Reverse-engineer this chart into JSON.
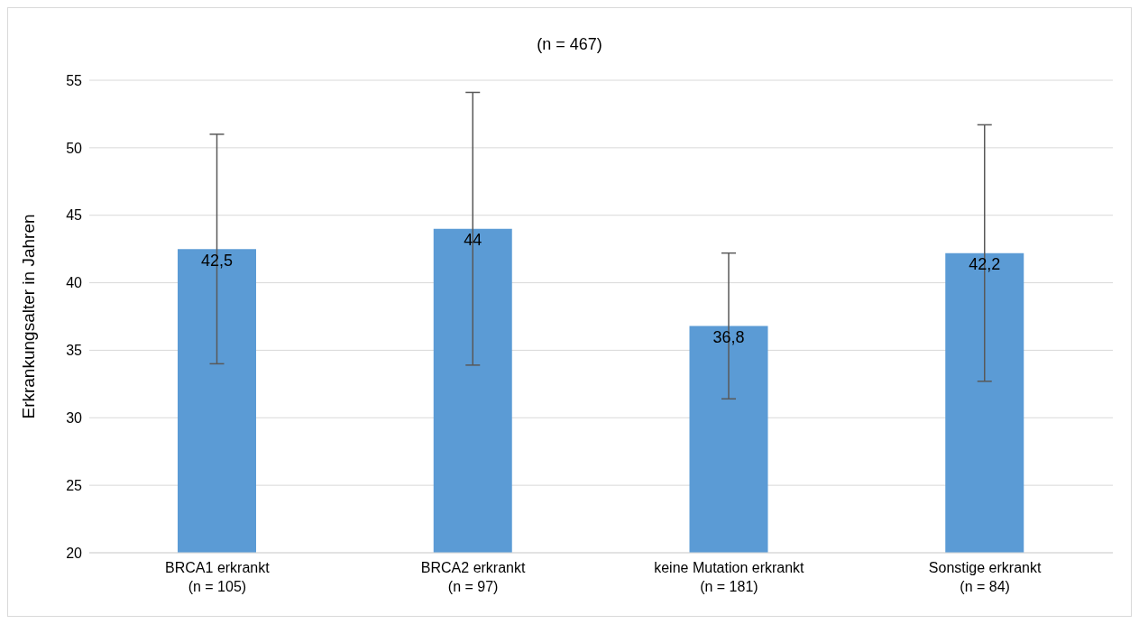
{
  "chart_data": {
    "type": "bar",
    "title": "(n = 467)",
    "ylabel": "Erkrankungsalter in Jahren",
    "categories": [
      "BRCA1 erkrankt\n(n = 105)",
      "BRCA2 erkrankt\n(n = 97)",
      "keine Mutation erkrankt\n(n = 181)",
      "Sonstige erkrankt\n(n = 84)"
    ],
    "values": [
      42.5,
      44,
      36.8,
      42.2
    ],
    "value_labels": [
      "42,5",
      "44",
      "36,8",
      "42,2"
    ],
    "errors": [
      8.5,
      10.1,
      5.4,
      9.5
    ],
    "color": "#5b9bd5",
    "ylim": [
      20,
      55
    ],
    "yticks": [
      20,
      25,
      30,
      35,
      40,
      45,
      50,
      55
    ],
    "grid": "y"
  }
}
